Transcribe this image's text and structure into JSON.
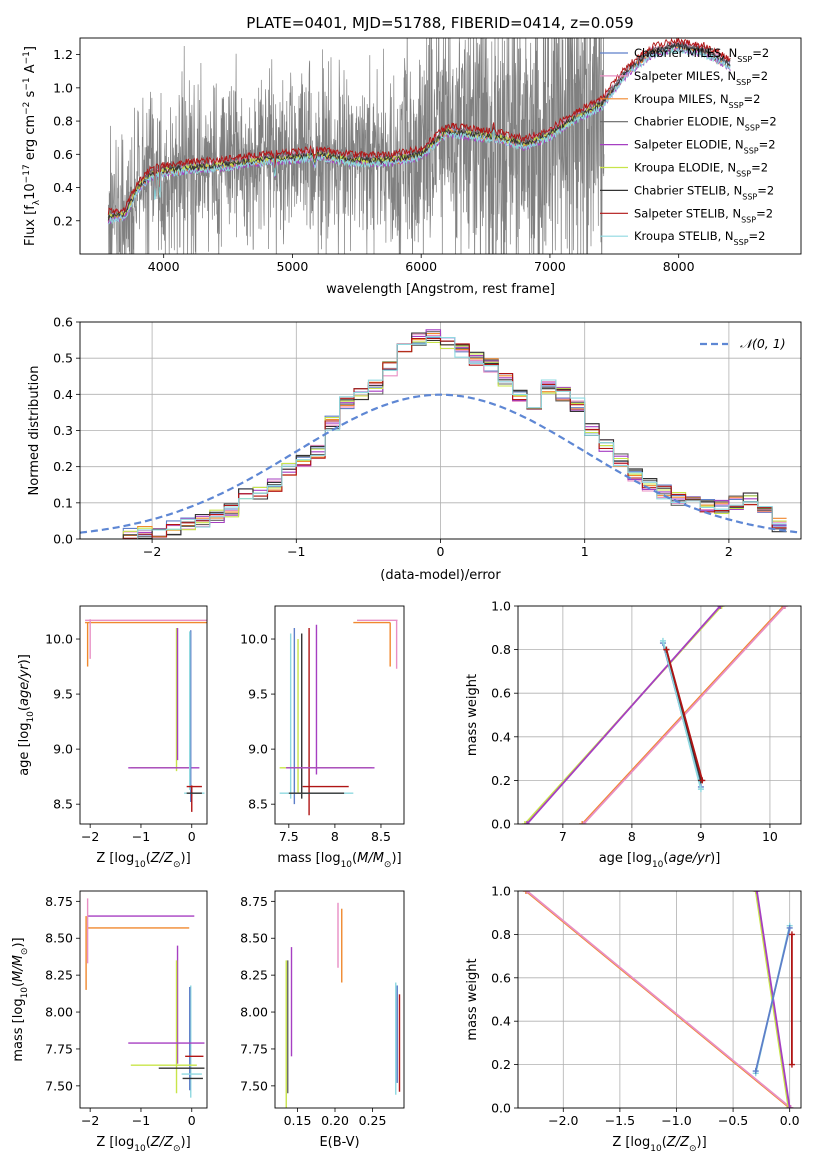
{
  "figure_title": "PLATE=0401, MJD=51788, FIBERID=0414, z=0.059",
  "colors": {
    "Chabrier MILES": "#5e7fc9",
    "Salpeter MILES": "#e88fc4",
    "Kroupa MILES": "#f0882e",
    "Chabrier ELODIE": "#666666",
    "Salpeter ELODIE": "#a63fc2",
    "Kroupa ELODIE": "#c8e44a",
    "Chabrier STELIB": "#333333",
    "Salpeter STELIB": "#b01515",
    "Kroupa STELIB": "#8fd9e0",
    "data": "#808080",
    "gaussian": "#5e87d4"
  },
  "chart_data": [
    {
      "id": "spectrum",
      "type": "line",
      "xlabel": "wavelength [Angstrom, rest frame]",
      "ylabel": "Flux [f",
      "ylabel_parts": {
        "lambda": "λ",
        "mid": "10",
        "exp": "−17",
        "rest": " erg cm",
        "cm_exp": "−2",
        "s": " s",
        "s_exp": "−1",
        "A": " A",
        "A_exp": "−1",
        "end": "]"
      },
      "xlim": [
        3350,
        8950
      ],
      "ylim": [
        0.0,
        1.3
      ],
      "xticks": [
        4000,
        5000,
        6000,
        7000,
        8000
      ],
      "yticks": [
        0.2,
        0.4,
        0.6,
        0.8,
        1.0,
        1.2
      ],
      "grid": false,
      "legend_position": "right",
      "legend": [
        {
          "name": "Chabrier MILES",
          "label": "Chabrier MILES, N",
          "sub": "SSP",
          "val": "=2"
        },
        {
          "name": "Salpeter MILES",
          "label": "Salpeter MILES, N",
          "sub": "SSP",
          "val": "=2"
        },
        {
          "name": "Kroupa MILES",
          "label": "Kroupa MILES, N",
          "sub": "SSP",
          "val": "=2"
        },
        {
          "name": "Chabrier ELODIE",
          "label": "Chabrier ELODIE, N",
          "sub": "SSP",
          "val": "=2"
        },
        {
          "name": "Salpeter ELODIE",
          "label": "Salpeter ELODIE, N",
          "sub": "SSP",
          "val": "=2"
        },
        {
          "name": "Kroupa ELODIE",
          "label": "Kroupa ELODIE, N",
          "sub": "SSP",
          "val": "=2"
        },
        {
          "name": "Chabrier STELIB",
          "label": "Chabrier STELIB, N",
          "sub": "SSP",
          "val": "=2"
        },
        {
          "name": "Salpeter STELIB",
          "label": "Salpeter STELIB, N",
          "sub": "SSP",
          "val": "=2"
        },
        {
          "name": "Kroupa STELIB",
          "label": "Kroupa STELIB, N",
          "sub": "SSP",
          "val": "=2"
        }
      ],
      "data_range": [
        3570,
        7420
      ],
      "continuum": [
        [
          3560,
          0.22
        ],
        [
          3700,
          0.24
        ],
        [
          3800,
          0.4
        ],
        [
          3900,
          0.48
        ],
        [
          4000,
          0.5
        ],
        [
          4200,
          0.52
        ],
        [
          4400,
          0.53
        ],
        [
          4600,
          0.55
        ],
        [
          4800,
          0.57
        ],
        [
          5000,
          0.58
        ],
        [
          5200,
          0.6
        ],
        [
          5400,
          0.57
        ],
        [
          5600,
          0.56
        ],
        [
          5800,
          0.57
        ],
        [
          6000,
          0.6
        ],
        [
          6200,
          0.74
        ],
        [
          6400,
          0.72
        ],
        [
          6600,
          0.7
        ],
        [
          6800,
          0.66
        ],
        [
          7000,
          0.72
        ],
        [
          7200,
          0.82
        ],
        [
          7400,
          0.9
        ],
        [
          7600,
          1.1
        ],
        [
          7800,
          1.22
        ],
        [
          8000,
          1.25
        ],
        [
          8200,
          1.22
        ],
        [
          8400,
          1.14
        ]
      ]
    },
    {
      "id": "residuals",
      "type": "line",
      "xlabel": "(data-model)/error",
      "ylabel": "Normed distribution",
      "xlim": [
        -2.5,
        2.5
      ],
      "ylim": [
        0.0,
        0.6
      ],
      "xticks": [
        -2,
        -1,
        0,
        1,
        2
      ],
      "yticks": [
        0.0,
        0.1,
        0.2,
        0.3,
        0.4,
        0.5,
        0.6
      ],
      "grid": true,
      "legend_position": "top-right",
      "gaussian_label": "𝒩(0, 1)",
      "bin_width": 0.1,
      "hist_start": -2.3,
      "histogram_base": [
        0.005,
        0.01,
        0.02,
        0.025,
        0.03,
        0.045,
        0.05,
        0.06,
        0.08,
        0.12,
        0.13,
        0.15,
        0.19,
        0.22,
        0.24,
        0.32,
        0.38,
        0.4,
        0.42,
        0.47,
        0.52,
        0.55,
        0.56,
        0.54,
        0.52,
        0.5,
        0.48,
        0.44,
        0.4,
        0.36,
        0.42,
        0.4,
        0.37,
        0.3,
        0.26,
        0.22,
        0.18,
        0.15,
        0.13,
        0.11,
        0.1,
        0.09,
        0.09,
        0.1,
        0.11,
        0.08,
        0.04
      ]
    },
    {
      "id": "age-vs-Z",
      "type": "scatter",
      "xlabel": "Z [log",
      "xlabel_parts": {
        "sub": "10",
        "rest": "(Z/Z",
        "sun_sub": "⊙",
        "end": ")]"
      },
      "ylabel": "age  [log",
      "ylabel_parts": {
        "sub": "10",
        "rest": "(age/yr)]"
      },
      "xlim": [
        -2.2,
        0.3
      ],
      "ylim": [
        8.32,
        10.3
      ],
      "xticks": [
        -2,
        -1,
        0
      ],
      "yticks": [
        8.5,
        9.0,
        9.5,
        10.0
      ],
      "grid": false,
      "bars": [
        {
          "model": "Salpeter MILES",
          "x": -0.3,
          "y": 10.17,
          "xerr": 1.8,
          "yerr": 0.0
        },
        {
          "model": "Kroupa MILES",
          "x": -0.3,
          "y": 10.15,
          "xerr": 1.8,
          "yerr": 0.0
        },
        {
          "model": "Salpeter MILES",
          "x": -2.0,
          "y": 10.0,
          "xerr": 0.0,
          "yerr": 0.18
        },
        {
          "model": "Kroupa MILES",
          "x": -2.05,
          "y": 9.95,
          "xerr": 0.0,
          "yerr": 0.2
        },
        {
          "model": "Kroupa ELODIE",
          "x": -0.3,
          "y": 9.45,
          "xerr": 0.0,
          "yerr": 0.65
        },
        {
          "model": "Salpeter ELODIE",
          "x": -0.28,
          "y": 9.5,
          "xerr": 0.0,
          "yerr": 0.6
        },
        {
          "model": "Kroupa ELODIE",
          "x": -0.6,
          "y": 8.83,
          "xerr": 0.6,
          "yerr": 0.0
        },
        {
          "model": "Salpeter ELODIE",
          "x": -0.55,
          "y": 8.83,
          "xerr": 0.7,
          "yerr": 0.0
        },
        {
          "model": "Chabrier MILES",
          "x": -0.02,
          "y": 9.3,
          "xerr": 0.0,
          "yerr": 0.78
        },
        {
          "model": "Kroupa STELIB",
          "x": -0.04,
          "y": 9.35,
          "xerr": 0.0,
          "yerr": 0.72
        },
        {
          "model": "Salpeter STELIB",
          "x": 0.0,
          "y": 8.55,
          "xerr": 0.0,
          "yerr": 0.12
        },
        {
          "model": "Salpeter STELIB",
          "x": 0.05,
          "y": 8.66,
          "xerr": 0.15,
          "yerr": 0.0
        },
        {
          "model": "Kroupa STELIB",
          "x": 0.05,
          "y": 8.6,
          "xerr": 0.2,
          "yerr": 0.0
        },
        {
          "model": "Chabrier STELIB",
          "x": 0.05,
          "y": 8.6,
          "xerr": 0.15,
          "yerr": 0.0
        }
      ]
    },
    {
      "id": "age-vs-mass",
      "type": "scatter",
      "xlabel": "mass [log",
      "xlabel_parts": {
        "sub": "10",
        "rest": "(M/M",
        "sun_sub": "⊙",
        "end": ")]"
      },
      "ylabel": "",
      "xlim": [
        7.35,
        8.75
      ],
      "ylim": [
        8.32,
        10.3
      ],
      "xticks": [
        7.5,
        8.0,
        8.5
      ],
      "yticks": [
        8.5,
        9.0,
        9.5,
        10.0
      ],
      "grid": false,
      "bars": [
        {
          "model": "Salpeter MILES",
          "x": 8.46,
          "y": 10.17,
          "xerr": 0.22,
          "yerr": 0.0
        },
        {
          "model": "Kroupa MILES",
          "x": 8.4,
          "y": 10.15,
          "xerr": 0.2,
          "yerr": 0.0
        },
        {
          "model": "Salpeter MILES",
          "x": 8.67,
          "y": 9.95,
          "xerr": 0.0,
          "yerr": 0.22
        },
        {
          "model": "Kroupa MILES",
          "x": 8.6,
          "y": 9.95,
          "xerr": 0.0,
          "yerr": 0.2
        },
        {
          "model": "Kroupa STELIB",
          "x": 7.52,
          "y": 9.3,
          "xerr": 0.0,
          "yerr": 0.75
        },
        {
          "model": "Chabrier MILES",
          "x": 7.56,
          "y": 9.3,
          "xerr": 0.0,
          "yerr": 0.8
        },
        {
          "model": "Kroupa ELODIE",
          "x": 7.6,
          "y": 9.3,
          "xerr": 0.0,
          "yerr": 0.7
        },
        {
          "model": "Chabrier STELIB",
          "x": 7.64,
          "y": 9.3,
          "xerr": 0.0,
          "yerr": 0.75
        },
        {
          "model": "Salpeter STELIB",
          "x": 7.72,
          "y": 9.25,
          "xerr": 0.0,
          "yerr": 0.85
        },
        {
          "model": "Salpeter ELODIE",
          "x": 7.8,
          "y": 9.45,
          "xerr": 0.0,
          "yerr": 0.68
        },
        {
          "model": "Kroupa ELODIE",
          "x": 7.9,
          "y": 8.83,
          "xerr": 0.5,
          "yerr": 0.0
        },
        {
          "model": "Salpeter ELODIE",
          "x": 7.95,
          "y": 8.83,
          "xerr": 0.48,
          "yerr": 0.0
        },
        {
          "model": "Salpeter STELIB",
          "x": 7.9,
          "y": 8.66,
          "xerr": 0.25,
          "yerr": 0.0
        },
        {
          "model": "Kroupa STELIB",
          "x": 7.8,
          "y": 8.6,
          "xerr": 0.4,
          "yerr": 0.0
        },
        {
          "model": "Chabrier STELIB",
          "x": 7.8,
          "y": 8.6,
          "xerr": 0.3,
          "yerr": 0.0
        }
      ]
    },
    {
      "id": "weight-vs-age",
      "type": "line",
      "xlabel": "age  [log",
      "xlabel_parts": {
        "sub": "10",
        "rest": "(age/yr)]"
      },
      "ylabel": "mass weight",
      "xlim": [
        6.35,
        10.45
      ],
      "ylim": [
        0.0,
        1.0
      ],
      "xticks": [
        7,
        8,
        9,
        10
      ],
      "yticks": [
        0.0,
        0.2,
        0.4,
        0.6,
        0.8,
        1.0
      ],
      "grid": true,
      "series": [
        {
          "model": "Kroupa ELODIE",
          "x": [
            6.45,
            9.3
          ],
          "y": [
            0.0,
            1.0
          ]
        },
        {
          "model": "Salpeter ELODIE",
          "x": [
            6.48,
            9.28
          ],
          "y": [
            0.0,
            1.0
          ]
        },
        {
          "model": "Kroupa MILES",
          "x": [
            7.28,
            10.2
          ],
          "y": [
            0.0,
            1.0
          ]
        },
        {
          "model": "Salpeter MILES",
          "x": [
            7.3,
            10.22
          ],
          "y": [
            0.0,
            1.0
          ]
        },
        {
          "model": "Chabrier MILES",
          "x": [
            8.45,
            9.0
          ],
          "y": [
            0.83,
            0.17
          ]
        },
        {
          "model": "Kroupa STELIB",
          "x": [
            8.45,
            9.0
          ],
          "y": [
            0.84,
            0.16
          ]
        },
        {
          "model": "Chabrier STELIB",
          "x": [
            8.5,
            9.0
          ],
          "y": [
            0.8,
            0.2
          ]
        },
        {
          "model": "Salpeter STELIB",
          "x": [
            8.5,
            9.02
          ],
          "y": [
            0.8,
            0.2
          ]
        }
      ]
    },
    {
      "id": "mass-vs-Z",
      "type": "scatter",
      "xlabel": "Z [log",
      "xlabel_parts": {
        "sub": "10",
        "rest": "(Z/Z",
        "sun_sub": "⊙",
        "end": ")]"
      },
      "ylabel": "mass [log",
      "ylabel_parts": {
        "sub": "10",
        "rest": "(M/M",
        "sun_sub": "⊙",
        "end": ")]"
      },
      "xlim": [
        -2.2,
        0.3
      ],
      "ylim": [
        7.35,
        8.82
      ],
      "xticks": [
        -2,
        -1,
        0
      ],
      "yticks": [
        7.5,
        7.75,
        8.0,
        8.25,
        8.5,
        8.75
      ],
      "grid": false,
      "bars": [
        {
          "model": "Salpeter ELODIE",
          "x": -1.0,
          "y": 8.65,
          "xerr": 1.05,
          "yerr": 0.0
        },
        {
          "model": "Kroupa MILES",
          "x": -1.05,
          "y": 8.57,
          "xerr": 1.0,
          "yerr": 0.0
        },
        {
          "model": "Salpeter MILES",
          "x": -2.05,
          "y": 8.55,
          "xerr": 0.0,
          "yerr": 0.22
        },
        {
          "model": "Kroupa MILES",
          "x": -2.08,
          "y": 8.4,
          "xerr": 0.0,
          "yerr": 0.25
        },
        {
          "model": "Salpeter ELODIE",
          "x": -0.28,
          "y": 8.05,
          "xerr": 0.0,
          "yerr": 0.4
        },
        {
          "model": "Kroupa ELODIE",
          "x": -0.3,
          "y": 7.9,
          "xerr": 0.0,
          "yerr": 0.45
        },
        {
          "model": "Kroupa STELIB",
          "x": -0.02,
          "y": 7.8,
          "xerr": 0.0,
          "yerr": 0.38
        },
        {
          "model": "Chabrier MILES",
          "x": -0.04,
          "y": 7.82,
          "xerr": 0.0,
          "yerr": 0.35
        },
        {
          "model": "Salpeter ELODIE",
          "x": -0.5,
          "y": 7.79,
          "xerr": 0.75,
          "yerr": 0.0
        },
        {
          "model": "Salpeter STELIB",
          "x": 0.05,
          "y": 7.7,
          "xerr": 0.18,
          "yerr": 0.0
        },
        {
          "model": "Kroupa ELODIE",
          "x": -0.55,
          "y": 7.64,
          "xerr": 0.65,
          "yerr": 0.0
        },
        {
          "model": "Chabrier STELIB",
          "x": -0.2,
          "y": 7.62,
          "xerr": 0.45,
          "yerr": 0.0
        },
        {
          "model": "Kroupa STELIB",
          "x": 0.0,
          "y": 7.58,
          "xerr": 0.2,
          "yerr": 0.0
        },
        {
          "model": "Chabrier STELIB",
          "x": 0.02,
          "y": 7.55,
          "xerr": 0.2,
          "yerr": 0.0
        }
      ]
    },
    {
      "id": "mass-vs-ebv",
      "type": "scatter",
      "xlabel": "E(B-V)",
      "ylabel": "",
      "xlim": [
        0.12,
        0.292
      ],
      "ylim": [
        7.35,
        8.82
      ],
      "xticks": [
        0.15,
        0.2,
        0.25
      ],
      "xtick_labels": [
        "0.15",
        "0.20",
        "0.25"
      ],
      "yticks": [
        7.5,
        7.75,
        8.0,
        8.25,
        8.5,
        8.75
      ],
      "grid": false,
      "bars": [
        {
          "model": "Kroupa ELODIE",
          "x": 0.135,
          "y": 7.85,
          "xerr": 0.0,
          "yerr": 0.5
        },
        {
          "model": "Chabrier ELODIE",
          "x": 0.137,
          "y": 7.9,
          "xerr": 0.0,
          "yerr": 0.45
        },
        {
          "model": "Salpeter ELODIE",
          "x": 0.142,
          "y": 8.07,
          "xerr": 0.0,
          "yerr": 0.37
        },
        {
          "model": "Salpeter MILES",
          "x": 0.204,
          "y": 8.52,
          "xerr": 0.0,
          "yerr": 0.22
        },
        {
          "model": "Kroupa MILES",
          "x": 0.209,
          "y": 8.45,
          "xerr": 0.0,
          "yerr": 0.25
        },
        {
          "model": "Kroupa STELIB",
          "x": 0.281,
          "y": 7.82,
          "xerr": 0.0,
          "yerr": 0.38
        },
        {
          "model": "Chabrier MILES",
          "x": 0.283,
          "y": 7.85,
          "xerr": 0.0,
          "yerr": 0.33
        },
        {
          "model": "Salpeter STELIB",
          "x": 0.286,
          "y": 7.79,
          "xerr": 0.0,
          "yerr": 0.33
        }
      ]
    },
    {
      "id": "weight-vs-Z",
      "type": "line",
      "xlabel": "Z [log",
      "xlabel_parts": {
        "sub": "10",
        "rest": "(Z/Z",
        "sun_sub": "⊙",
        "end": ")]"
      },
      "ylabel": "mass weight",
      "xlim": [
        -2.4,
        0.1
      ],
      "ylim": [
        0.0,
        1.0
      ],
      "xticks": [
        -2.0,
        -1.5,
        -1.0,
        -0.5,
        0.0
      ],
      "xtick_labels": [
        "−2.0",
        "−1.5",
        "−1.0",
        "−0.5",
        "0.0"
      ],
      "yticks": [
        0.0,
        0.2,
        0.4,
        0.6,
        0.8,
        1.0
      ],
      "grid": true,
      "series": [
        {
          "model": "Kroupa MILES",
          "x": [
            -2.33,
            0.0
          ],
          "y": [
            1.0,
            0.0
          ]
        },
        {
          "model": "Salpeter MILES",
          "x": [
            -2.32,
            0.01
          ],
          "y": [
            1.0,
            0.0
          ]
        },
        {
          "model": "Kroupa ELODIE",
          "x": [
            -0.3,
            -0.01
          ],
          "y": [
            1.0,
            0.0
          ]
        },
        {
          "model": "Salpeter ELODIE",
          "x": [
            -0.29,
            0.0
          ],
          "y": [
            1.0,
            0.0
          ]
        },
        {
          "model": "Kroupa STELIB",
          "x": [
            -0.3,
            0.0
          ],
          "y": [
            0.16,
            0.84
          ]
        },
        {
          "model": "Chabrier MILES",
          "x": [
            -0.3,
            0.0
          ],
          "y": [
            0.17,
            0.83
          ]
        },
        {
          "model": "Salpeter STELIB",
          "x": [
            0.02,
            0.02
          ],
          "y": [
            0.2,
            0.8
          ]
        }
      ]
    }
  ]
}
